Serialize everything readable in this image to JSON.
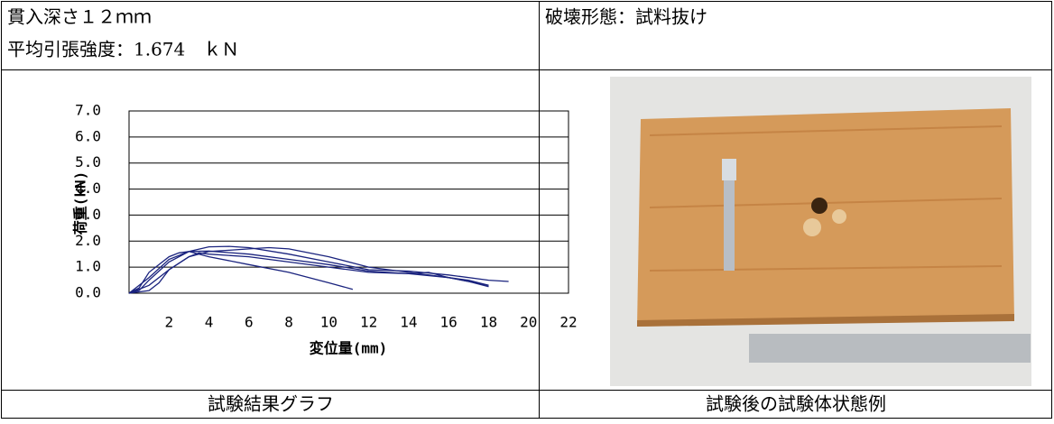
{
  "header": {
    "depth": "貫入深さ１２ｍｍ",
    "strength": "平均引張強度：1.674　ｋＮ",
    "failure_mode": "破壊形態：試料抜け"
  },
  "captions": [
    "試験結果グラフ",
    "試験後の試験体状態例"
  ],
  "chart_data": {
    "type": "line",
    "y_label": "荷重(kN)",
    "x_label": "変位量(mm)",
    "xlim": [
      0,
      22
    ],
    "xticks": [
      2,
      4,
      6,
      8,
      10,
      12,
      14,
      16,
      18,
      20,
      22
    ],
    "ylim": [
      0,
      7
    ],
    "yticks": [
      {
        "value": 0,
        "label": "0.0"
      },
      {
        "value": 1,
        "label": "1.0"
      },
      {
        "value": 2,
        "label": "2.0"
      },
      {
        "value": 3,
        "label": "3.0"
      },
      {
        "value": 4,
        "label": "4.0"
      },
      {
        "value": 5,
        "label": "5.0"
      },
      {
        "value": 6,
        "label": "6.0"
      },
      {
        "value": 7,
        "label": "7.0"
      }
    ],
    "grid": true,
    "series": [
      {
        "color": "#1a237e",
        "x": [
          0,
          0.5,
          1,
          2,
          3,
          4,
          5,
          6,
          8,
          10,
          12,
          14,
          16,
          18,
          19
        ],
        "values": [
          0,
          0.1,
          0.5,
          1.2,
          1.6,
          1.78,
          1.8,
          1.75,
          1.5,
          1.2,
          0.9,
          0.85,
          0.7,
          0.5,
          0.45
        ]
      },
      {
        "color": "#1a237e",
        "x": [
          0,
          1,
          2,
          3,
          4,
          5,
          6,
          7,
          8,
          10,
          12,
          14,
          16,
          18
        ],
        "values": [
          0,
          0.3,
          0.9,
          1.4,
          1.6,
          1.65,
          1.7,
          1.75,
          1.7,
          1.4,
          1.0,
          0.8,
          0.6,
          0.3
        ]
      },
      {
        "color": "#1a237e",
        "x": [
          0,
          0.5,
          1,
          2,
          2.5,
          3,
          4,
          6,
          8,
          10,
          11.2
        ],
        "values": [
          0,
          0.2,
          0.8,
          1.4,
          1.55,
          1.6,
          1.4,
          1.1,
          0.8,
          0.4,
          0.15
        ]
      },
      {
        "color": "#1a237e",
        "x": [
          0,
          1,
          1.5,
          2,
          3,
          3.5,
          4,
          6,
          8,
          10,
          12,
          14,
          16,
          17,
          18
        ],
        "values": [
          0,
          0.1,
          0.4,
          0.9,
          1.4,
          1.55,
          1.5,
          1.4,
          1.2,
          1.0,
          0.8,
          0.75,
          0.6,
          0.5,
          0.3
        ]
      },
      {
        "color": "#1a237e",
        "x": [
          0,
          1,
          2,
          3,
          4,
          6,
          8,
          10,
          12,
          14,
          15,
          16,
          17,
          18
        ],
        "values": [
          0,
          0.6,
          1.3,
          1.6,
          1.62,
          1.5,
          1.3,
          1.1,
          0.85,
          0.75,
          0.8,
          0.6,
          0.45,
          0.25
        ]
      }
    ]
  }
}
